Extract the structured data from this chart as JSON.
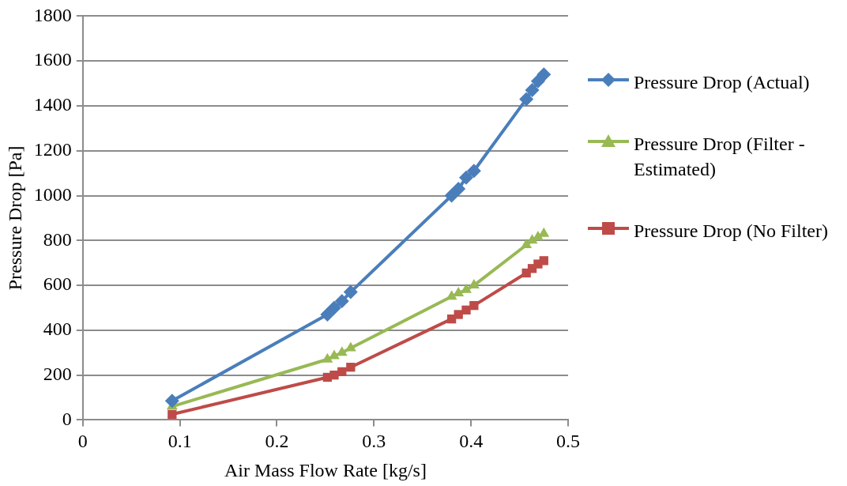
{
  "chart_data": {
    "type": "line",
    "xlabel": "Air Mass Flow Rate [kg/s]",
    "ylabel": "Pressure Drop [Pa]",
    "x": [
      0.092,
      0.252,
      0.259,
      0.267,
      0.276,
      0.38,
      0.387,
      0.395,
      0.403,
      0.457,
      0.463,
      0.469,
      0.475
    ],
    "xlim": [
      0,
      0.5
    ],
    "xticks": [
      0,
      0.1,
      0.2,
      0.3,
      0.4,
      0.5
    ],
    "ylim": [
      0,
      1800
    ],
    "yticks": [
      0,
      200,
      400,
      600,
      800,
      1000,
      1200,
      1400,
      1600,
      1800
    ],
    "grid": "y",
    "legend": "right",
    "line_style": "solid",
    "series": [
      {
        "name": "Pressure Drop (Actual)",
        "color": "#4a7ebb",
        "marker": "diamond",
        "values": [
          85,
          470,
          500,
          530,
          570,
          1000,
          1030,
          1080,
          1110,
          1430,
          1470,
          1510,
          1540
        ]
      },
      {
        "name": "Pressure Drop (Filter - Estimated)",
        "color": "#98b954",
        "marker": "triangle",
        "values": [
          60,
          270,
          285,
          300,
          320,
          550,
          565,
          580,
          600,
          780,
          800,
          815,
          830
        ]
      },
      {
        "name": "Pressure Drop (No Filter)",
        "color": "#be4b48",
        "marker": "square",
        "values": [
          25,
          190,
          200,
          215,
          235,
          450,
          470,
          490,
          510,
          655,
          675,
          695,
          710
        ]
      }
    ]
  }
}
